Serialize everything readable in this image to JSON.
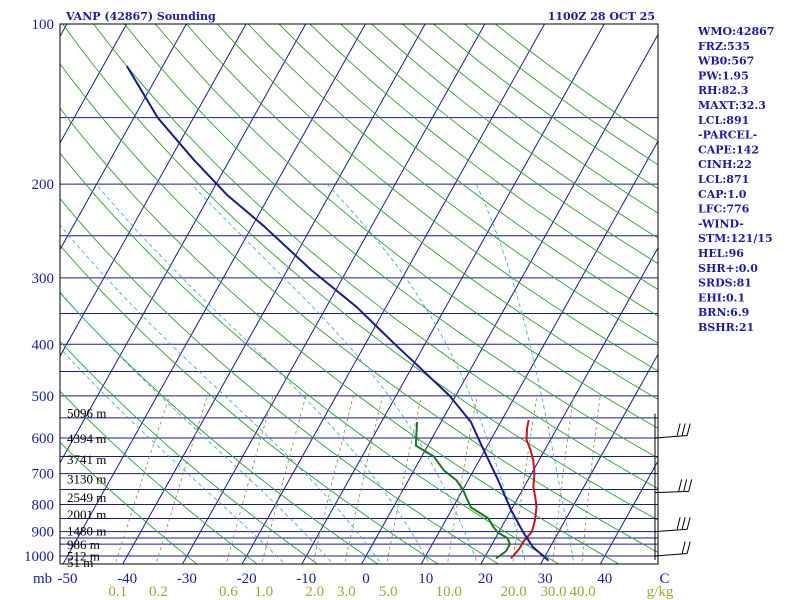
{
  "header": {
    "title": "VANP (42867) Sounding",
    "datetime": "1100Z 28 OCT 25"
  },
  "indices": [
    "WMO:42867",
    "FRZ:535",
    "WB0:567",
    "PW:1.95",
    "RH:82.3",
    "MAXT:32.3",
    "LCL:891",
    "-PARCEL-",
    "CAPE:142",
    "CINH:22",
    "LCL:871",
    "CAP:1.0",
    "LFC:776",
    "-WIND-",
    "STM:121/15",
    "HEL:96",
    "SHR+:0.0",
    "SRDS:81",
    "EHI:0.1",
    "BRN:6.9",
    "BSHR:21"
  ],
  "chart_data": {
    "type": "line",
    "title": "VANP (42867) Sounding",
    "x_axis": {
      "unit": "",
      "min": -50,
      "max": 50,
      "tick_labels": [
        "-50",
        "-40",
        "-30",
        "-20",
        "-10",
        "0",
        "10",
        "20",
        "30",
        "40",
        "C"
      ]
    },
    "y_axis": {
      "scale": "log",
      "unit": "mb",
      "min": 100,
      "max": 1000,
      "tick_labels": [
        "100",
        "200",
        "300",
        "400",
        "500",
        "600",
        "700",
        "800",
        "900",
        "1000"
      ]
    },
    "corner_label": "mb",
    "mixing_ratio_labels": [
      "0.1",
      "0.2",
      "0.6",
      "1.0",
      "2.0",
      "3.0",
      "5.0",
      "10.0",
      "20.0",
      "30.0",
      "40.0"
    ],
    "mixing_ratio_unit": "g/kg",
    "height_labels": [
      {
        "p": 540,
        "label": "5096 m"
      },
      {
        "p": 603,
        "label": "4394 m"
      },
      {
        "p": 660,
        "label": "3741 m"
      },
      {
        "p": 718,
        "label": "3130 m"
      },
      {
        "p": 778,
        "label": "2549 m"
      },
      {
        "p": 838,
        "label": "2001 m"
      },
      {
        "p": 900,
        "label": "1480 m"
      },
      {
        "p": 953,
        "label": "986 m"
      },
      {
        "p": 1002,
        "label": "512 m"
      },
      {
        "p": 1055,
        "label": "51 m"
      }
    ],
    "series": [
      {
        "color": "#c0181e",
        "points": [
          [
            1010,
            24.5
          ],
          [
            970,
            25
          ],
          [
            940,
            25
          ],
          [
            900,
            25.5
          ],
          [
            860,
            25
          ],
          [
            810,
            24
          ],
          [
            780,
            23
          ],
          [
            740,
            21.5
          ],
          [
            700,
            20.5
          ],
          [
            660,
            19
          ],
          [
            630,
            17.5
          ],
          [
            605,
            16
          ],
          [
            575,
            15
          ],
          [
            555,
            14.5
          ]
        ]
      },
      {
        "color": "#1a7a1a",
        "points": [
          [
            1010,
            22
          ],
          [
            980,
            23
          ],
          [
            950,
            23
          ],
          [
            925,
            22
          ],
          [
            905,
            20
          ],
          [
            880,
            18.5
          ],
          [
            850,
            17
          ],
          [
            830,
            15
          ],
          [
            810,
            13
          ],
          [
            780,
            11.5
          ],
          [
            750,
            10
          ],
          [
            720,
            8
          ],
          [
            690,
            5
          ],
          [
            650,
            2
          ],
          [
            620,
            -2
          ],
          [
            590,
            -3
          ],
          [
            560,
            -4
          ]
        ]
      },
      {
        "color": "#1a1a8c",
        "points": [
          [
            1020,
            31
          ],
          [
            960,
            27
          ],
          [
            900,
            24
          ],
          [
            820,
            20
          ],
          [
            720,
            15
          ],
          [
            620,
            9
          ],
          [
            560,
            5
          ],
          [
            500,
            -1
          ],
          [
            440,
            -9
          ],
          [
            400,
            -15
          ],
          [
            340,
            -25
          ],
          [
            290,
            -36
          ],
          [
            240,
            -48
          ],
          [
            210,
            -57
          ],
          [
            180,
            -66
          ],
          [
            150,
            -76
          ],
          [
            120,
            -86
          ]
        ]
      }
    ],
    "wind_barbs": [
      {
        "p": 600,
        "dir": 250,
        "spd": 30
      },
      {
        "p": 760,
        "dir": 260,
        "spd": 30
      },
      {
        "p": 900,
        "dir": 250,
        "spd": 25
      },
      {
        "p": 1000,
        "dir": 250,
        "spd": 15
      }
    ]
  }
}
